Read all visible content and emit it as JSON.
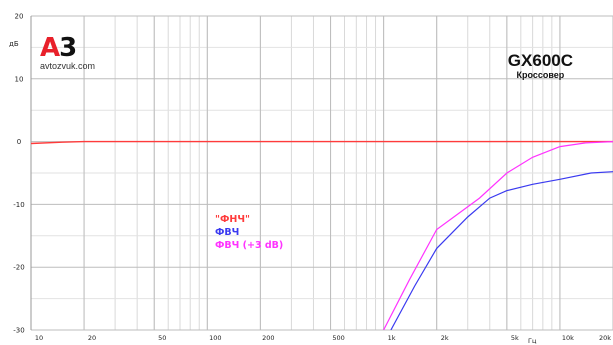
{
  "logo": {
    "mark_a": "A",
    "mark_3": "3",
    "site": "avtozvuk.com",
    "colors": {
      "a": "#e8202a",
      "three": "#111111"
    }
  },
  "model": {
    "title": "GX600C",
    "subtitle": "Кроссовер"
  },
  "chart_data": {
    "type": "line",
    "title": "GX600C",
    "subtitle": "Кроссовер",
    "xlabel": "Гц",
    "ylabel": "дБ",
    "xscale": "log",
    "xlim": [
      10,
      20000
    ],
    "ylim": [
      -30,
      20
    ],
    "grid": true,
    "legend_placement": "center-left",
    "x_ticks": [
      {
        "value": 10,
        "label": "10"
      },
      {
        "value": 20,
        "label": "20"
      },
      {
        "value": 50,
        "label": "50"
      },
      {
        "value": 100,
        "label": "100"
      },
      {
        "value": 200,
        "label": "200"
      },
      {
        "value": 500,
        "label": "500"
      },
      {
        "value": 1000,
        "label": "1k"
      },
      {
        "value": 2000,
        "label": "2k"
      },
      {
        "value": 5000,
        "label": "5k"
      },
      {
        "value": 10000,
        "label": "10k"
      },
      {
        "value": 20000,
        "label": "20k"
      }
    ],
    "y_ticks": [
      {
        "value": 20,
        "label": "20"
      },
      {
        "value": 10,
        "label": "10"
      },
      {
        "value": 0,
        "label": "0"
      },
      {
        "value": -10,
        "label": "-10"
      },
      {
        "value": -20,
        "label": "-20"
      },
      {
        "value": -30,
        "label": "-30"
      }
    ],
    "series": [
      {
        "name": "\"ФНЧ\"",
        "color": "#ff3b3b",
        "points": [
          [
            10,
            -0.3
          ],
          [
            15,
            -0.1
          ],
          [
            20,
            0
          ],
          [
            100,
            0
          ],
          [
            1000,
            0
          ],
          [
            10000,
            0
          ],
          [
            20000,
            0
          ]
        ]
      },
      {
        "name": "ФВЧ",
        "color": "#3a3af0",
        "points": [
          [
            1100,
            -30
          ],
          [
            1500,
            -23
          ],
          [
            2000,
            -17
          ],
          [
            3000,
            -12
          ],
          [
            4000,
            -9
          ],
          [
            5000,
            -7.8
          ],
          [
            7000,
            -6.8
          ],
          [
            10000,
            -6
          ],
          [
            15000,
            -5
          ],
          [
            20000,
            -4.8
          ]
        ]
      },
      {
        "name": "ФВЧ (+3 dB)",
        "color": "#ff33ff",
        "points": [
          [
            1000,
            -30
          ],
          [
            1400,
            -22
          ],
          [
            2000,
            -14
          ],
          [
            2500,
            -12
          ],
          [
            3500,
            -9
          ],
          [
            5000,
            -5
          ],
          [
            7000,
            -2.5
          ],
          [
            10000,
            -0.8
          ],
          [
            14000,
            -0.2
          ],
          [
            20000,
            0
          ]
        ]
      }
    ]
  }
}
